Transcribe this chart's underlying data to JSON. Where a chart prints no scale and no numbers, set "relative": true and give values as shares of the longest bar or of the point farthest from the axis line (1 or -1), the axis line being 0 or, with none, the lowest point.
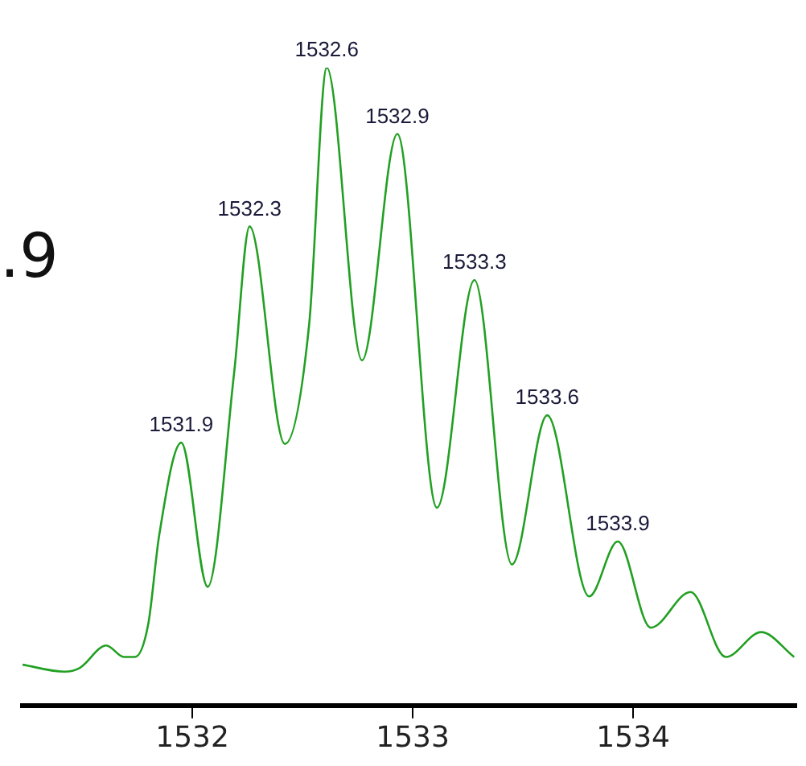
{
  "chart_data": {
    "type": "line",
    "relative": true,
    "x": [
      1531.23,
      1531.42,
      1531.49,
      1531.61,
      1531.69,
      1531.74,
      1531.8,
      1531.85,
      1531.95,
      1532.07,
      1532.19,
      1532.26,
      1532.42,
      1532.53,
      1532.61,
      1532.77,
      1532.93,
      1533.11,
      1533.28,
      1533.45,
      1533.61,
      1533.8,
      1533.93,
      1534.08,
      1534.26,
      1534.42,
      1534.58,
      1534.73
    ],
    "series": [
      {
        "color": "#22a022",
        "values": [
          0.064,
          0.053,
          0.059,
          0.094,
          0.076,
          0.076,
          0.127,
          0.267,
          0.412,
          0.186,
          0.522,
          0.751,
          0.41,
          0.597,
          1.0,
          0.541,
          0.896,
          0.31,
          0.667,
          0.221,
          0.455,
          0.171,
          0.257,
          0.122,
          0.178,
          0.076,
          0.115,
          0.076
        ]
      }
    ],
    "xlim": [
      1531.23,
      1534.74
    ],
    "xticks": [
      1532,
      1533,
      1534
    ],
    "grid": false,
    "legend": false,
    "marker": "none",
    "line_style": "solid",
    "annotations": [
      ".9",
      {
        "text": "1531.9",
        "x": 1531.95,
        "y": 0.412
      },
      {
        "text": "1532.3",
        "x": 1532.26,
        "y": 0.751
      },
      {
        "text": "1532.6",
        "x": 1532.61,
        "y": 1.0
      },
      {
        "text": "1532.9",
        "x": 1532.93,
        "y": 0.896
      },
      {
        "text": "1533.3",
        "x": 1533.28,
        "y": 0.667
      },
      {
        "text": "1533.6",
        "x": 1533.61,
        "y": 0.455
      },
      {
        "text": "1533.9",
        "x": 1533.93,
        "y": 0.257
      }
    ]
  }
}
